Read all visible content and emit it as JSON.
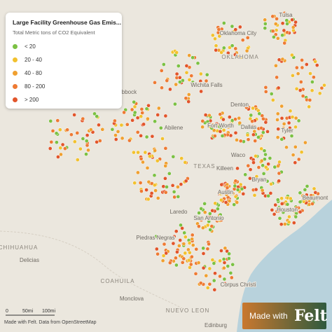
{
  "legend": {
    "title": "Large Facility Greenhouse Gas Emis...",
    "subtitle": "Total Metric tons of CO2 Equivalent",
    "items": [
      {
        "label": "< 20",
        "color": "#7bc143"
      },
      {
        "label": "20 - 40",
        "color": "#f2c12e"
      },
      {
        "label": "40 - 80",
        "color": "#f0a030"
      },
      {
        "label": "80 - 200",
        "color": "#ee7a33"
      },
      {
        "label": "> 200",
        "color": "#e2552b"
      }
    ]
  },
  "places": [
    "Tulsa",
    "Oklahoma City",
    "OKLAHOMA",
    "Wichita Falls",
    "Denton",
    "Abilene",
    "Fort Worth",
    "Dallas",
    "Tyler",
    "Waco",
    "TEXAS",
    "Killeen",
    "Bryan",
    "Austin",
    "Laredo",
    "San Antonio",
    "Houston",
    "Beaumont",
    "Piedras Negras",
    "CHIHUAHUA",
    "Delicias",
    "Corpus Christi",
    "COAHUILA",
    "Monclova",
    "NUEVO LEON",
    "Edinburg",
    "Lubbock"
  ],
  "scale": [
    "0",
    "50mi",
    "100mi"
  ],
  "attribution": "Made with Felt. Data from OpenStreetMap",
  "badge": {
    "text": "Made with",
    "brand": "Felt"
  }
}
